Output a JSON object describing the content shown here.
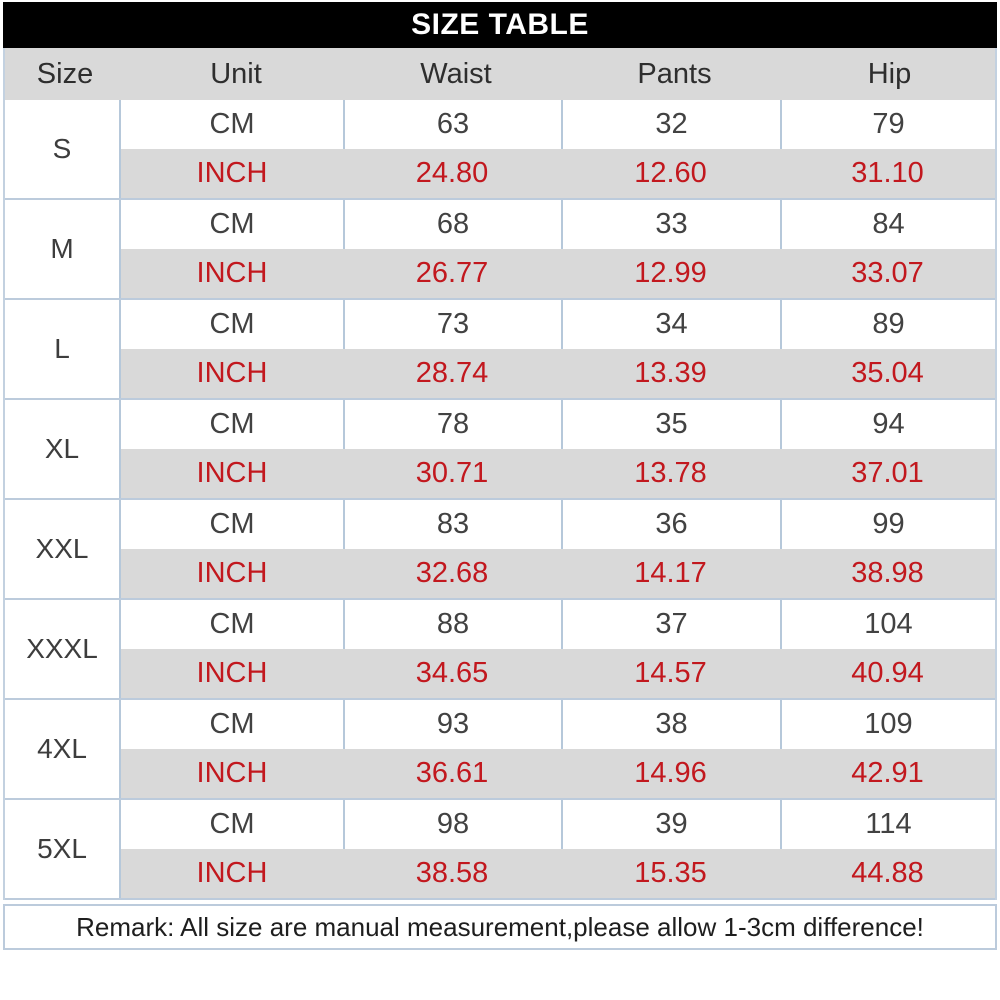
{
  "title": "SIZE TABLE",
  "table": {
    "columns": [
      "Size",
      "Unit",
      "Waist",
      "Pants",
      "Hip"
    ],
    "unit_labels": {
      "cm": "CM",
      "inch": "INCH"
    },
    "rows": [
      {
        "size": "S",
        "cm": [
          "63",
          "32",
          "79"
        ],
        "inch": [
          "24.80",
          "12.60",
          "31.10"
        ]
      },
      {
        "size": "M",
        "cm": [
          "68",
          "33",
          "84"
        ],
        "inch": [
          "26.77",
          "12.99",
          "33.07"
        ]
      },
      {
        "size": "L",
        "cm": [
          "73",
          "34",
          "89"
        ],
        "inch": [
          "28.74",
          "13.39",
          "35.04"
        ]
      },
      {
        "size": "XL",
        "cm": [
          "78",
          "35",
          "94"
        ],
        "inch": [
          "30.71",
          "13.78",
          "37.01"
        ]
      },
      {
        "size": "XXL",
        "cm": [
          "83",
          "36",
          "99"
        ],
        "inch": [
          "32.68",
          "14.17",
          "38.98"
        ]
      },
      {
        "size": "XXXL",
        "cm": [
          "88",
          "37",
          "104"
        ],
        "inch": [
          "34.65",
          "14.57",
          "40.94"
        ]
      },
      {
        "size": "4XL",
        "cm": [
          "93",
          "38",
          "109"
        ],
        "inch": [
          "36.61",
          "14.96",
          "42.91"
        ]
      },
      {
        "size": "5XL",
        "cm": [
          "98",
          "39",
          "114"
        ],
        "inch": [
          "38.58",
          "15.35",
          "44.88"
        ]
      }
    ]
  },
  "remark": "Remark: All size are manual measurement,please allow 1-3cm difference!",
  "colors": {
    "title_bar_bg": "#000000",
    "title_text": "#ffffff",
    "row_alt_bg": "#d9d9d9",
    "inch_text_red": "#c2181e",
    "cm_text": "#424242",
    "border": "#b6c8da"
  }
}
